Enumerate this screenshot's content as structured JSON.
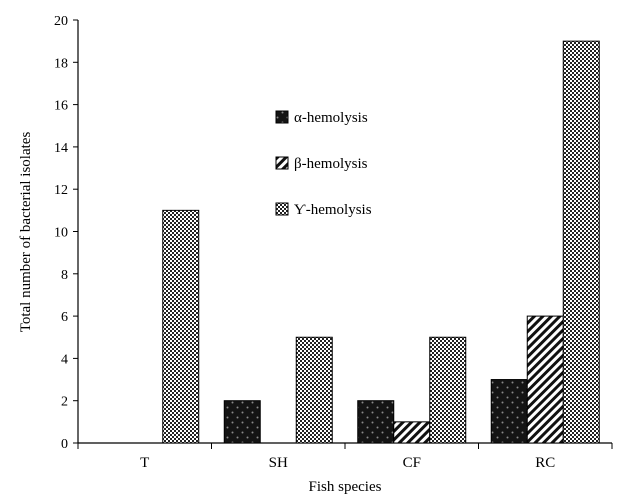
{
  "chart_data": {
    "type": "bar",
    "categories": [
      "T",
      "SH",
      "CF",
      "RC"
    ],
    "series": [
      {
        "name": "α-hemolysis",
        "values": [
          0,
          2,
          2,
          3
        ],
        "pattern": "dark-dots"
      },
      {
        "name": "β-hemolysis",
        "values": [
          0,
          0,
          1,
          6
        ],
        "pattern": "diagonal-stripes"
      },
      {
        "name": "Ƴ-hemolysis",
        "values": [
          11,
          5,
          5,
          19
        ],
        "pattern": "checker"
      }
    ],
    "xlabel": "Fish species",
    "ylabel": "Total number of bacterial isolates",
    "ylim": [
      0,
      20
    ],
    "yticks": [
      "0",
      "2",
      "4",
      "6",
      "8",
      "10",
      "12",
      "14",
      "16",
      "18",
      "20"
    ],
    "legend_position": "upper-center",
    "grid": false
  }
}
